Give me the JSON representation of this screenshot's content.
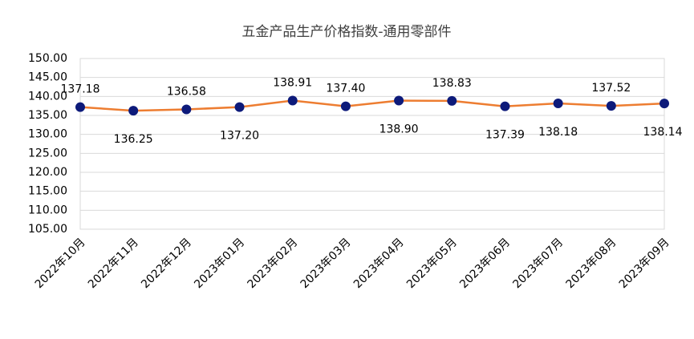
{
  "chart_data": {
    "type": "line",
    "title": "五金产品生产价格指数-通用零部件",
    "categories": [
      "2022年10月",
      "2022年11月",
      "2022年12月",
      "2023年01月",
      "2023年02月",
      "2023年03月",
      "2023年04月",
      "2023年05月",
      "2023年06月",
      "2023年07月",
      "2023年08月",
      "2023年09月"
    ],
    "series": [
      {
        "name": "五金产品生产价格指数-通用零部件",
        "color": "#ed7d31",
        "marker_color": "#0d1a7a",
        "values": [
          137.18,
          136.25,
          136.58,
          137.2,
          138.91,
          137.4,
          138.9,
          138.83,
          137.39,
          138.18,
          137.52,
          138.14
        ],
        "value_labels": [
          "137.18",
          "136.25",
          "136.58",
          "137.20",
          "138.91",
          "137.40",
          "138.90",
          "138.83",
          "137.39",
          "138.18",
          "137.52",
          "138.14"
        ]
      }
    ],
    "ylim": [
      105,
      150
    ],
    "yticks": [
      {
        "value": 105,
        "label": "105.00"
      },
      {
        "value": 110,
        "label": "110.00"
      },
      {
        "value": 115,
        "label": "115.00"
      },
      {
        "value": 120,
        "label": "120.00"
      },
      {
        "value": 125,
        "label": "125.00"
      },
      {
        "value": 130,
        "label": "130.00"
      },
      {
        "value": 135,
        "label": "135.00"
      },
      {
        "value": 140,
        "label": "140.00"
      },
      {
        "value": 145,
        "label": "145.00"
      },
      {
        "value": 150,
        "label": "150.00"
      }
    ],
    "grid": true
  }
}
